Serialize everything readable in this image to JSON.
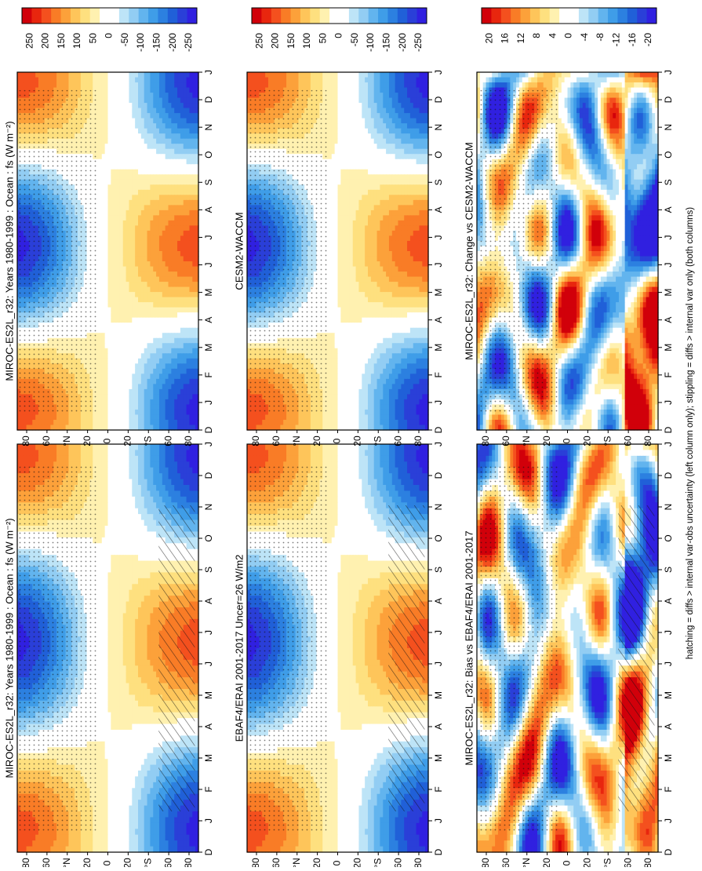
{
  "figure": {
    "footer_note": "hatching = diffs > internal var-obs uncertainty (left column only); stippling = diffs > internal var only (both columns)"
  },
  "colors": {
    "large_scale": [
      "#d1000a",
      "#e8260e",
      "#f4501e",
      "#f97c26",
      "#fca13a",
      "#fec55a",
      "#fee07f",
      "#fff1b0",
      "#ffffff",
      "#ffffff",
      "#bde4f7",
      "#92cdf3",
      "#62b4ee",
      "#3f9de8",
      "#2c80e0",
      "#2060d8",
      "#2a3fd8",
      "#3020e0"
    ],
    "diff_scale": [
      "#d1000a",
      "#e8260e",
      "#f4501e",
      "#f97c26",
      "#fca13a",
      "#fec55a",
      "#fee07f",
      "#fff1b0",
      "#ffffff",
      "#ffffff",
      "#bde4f7",
      "#92cdf3",
      "#62b4ee",
      "#3f9de8",
      "#2c80e0",
      "#2060d8",
      "#2a3fd8",
      "#3020e0"
    ]
  },
  "chart_data": [
    {
      "id": "row1-left",
      "type": "heatmap",
      "title": "MIROC-ES2L_r32: Years 1980-1999 : Ocean : fs (W m⁻²)",
      "x_ticks": [
        "D",
        "J",
        "F",
        "M",
        "A",
        "M",
        "J",
        "J",
        "A",
        "S",
        "O",
        "N",
        "D",
        "J"
      ],
      "y_ticks": [
        "80",
        "60",
        "°N",
        "20",
        "0",
        "20",
        "°S",
        "60",
        "80"
      ],
      "colorbar_ticks": [
        "250",
        "200",
        "150",
        "100",
        "50",
        "0",
        "-50",
        "-100",
        "-150",
        "-200",
        "-250"
      ],
      "range": [
        -275,
        275
      ],
      "field": "flux",
      "hatching": true,
      "stippling": true
    },
    {
      "id": "row1-right",
      "type": "heatmap",
      "title": "MIROC-ES2L_r32: Years 1980-1999 : Ocean : fs (W m⁻²)",
      "x_ticks": [
        "D",
        "J",
        "F",
        "M",
        "A",
        "M",
        "J",
        "J",
        "A",
        "S",
        "O",
        "N",
        "D",
        "J"
      ],
      "y_ticks": [
        "80",
        "60",
        "°N",
        "20",
        "0",
        "20",
        "°S",
        "60",
        "80"
      ],
      "colorbar_ticks": [
        "250",
        "200",
        "150",
        "100",
        "50",
        "0",
        "-50",
        "-100",
        "-150",
        "-200",
        "-250"
      ],
      "range": [
        -275,
        275
      ],
      "field": "flux",
      "hatching": false,
      "stippling": true
    },
    {
      "id": "row2-left",
      "type": "heatmap",
      "title": "EBAF4/ERAI 2001-2017 Uncer=26 W/m2",
      "x_ticks": [
        "D",
        "J",
        "F",
        "M",
        "A",
        "M",
        "J",
        "J",
        "A",
        "S",
        "O",
        "N",
        "D",
        "J"
      ],
      "y_ticks": [
        "80",
        "60",
        "°N",
        "20",
        "0",
        "20",
        "°S",
        "60",
        "80"
      ],
      "colorbar_ticks": [
        "250",
        "200",
        "150",
        "100",
        "50",
        "0",
        "-50",
        "-100",
        "-150",
        "-200",
        "-250"
      ],
      "range": [
        -275,
        275
      ],
      "field": "flux",
      "hatching": true,
      "stippling": true
    },
    {
      "id": "row2-right",
      "type": "heatmap",
      "title": "CESM2-WACCM",
      "x_ticks": [
        "D",
        "J",
        "F",
        "M",
        "A",
        "M",
        "J",
        "J",
        "A",
        "S",
        "O",
        "N",
        "D",
        "J"
      ],
      "y_ticks": [
        "80",
        "60",
        "°N",
        "20",
        "0",
        "20",
        "°S",
        "60",
        "80"
      ],
      "colorbar_ticks": [
        "250",
        "200",
        "150",
        "100",
        "50",
        "0",
        "-50",
        "-100",
        "-150",
        "-200",
        "-250"
      ],
      "range": [
        -275,
        275
      ],
      "field": "flux",
      "hatching": false,
      "stippling": true
    },
    {
      "id": "row3-left",
      "type": "heatmap",
      "title": "MIROC-ES2L_r32: Bias vs EBAF4/ERAI 2001-2017",
      "x_ticks": [
        "D",
        "J",
        "F",
        "M",
        "A",
        "M",
        "J",
        "J",
        "A",
        "S",
        "O",
        "N",
        "D",
        "J"
      ],
      "y_ticks": [
        "80",
        "60",
        "°N",
        "20",
        "0",
        "20",
        "°S",
        "60",
        "80"
      ],
      "colorbar_ticks": [
        "20",
        "16",
        "12",
        "8",
        "4",
        "0",
        "-4",
        "-8",
        "-12",
        "-16",
        "-20"
      ],
      "range": [
        -22,
        22
      ],
      "field": "diff",
      "hatching": true,
      "stippling": true
    },
    {
      "id": "row3-right",
      "type": "heatmap",
      "title": "MIROC-ES2L_r32: Change vs CESM2-WACCM",
      "x_ticks": [
        "D",
        "J",
        "F",
        "M",
        "A",
        "M",
        "J",
        "J",
        "A",
        "S",
        "O",
        "N",
        "D",
        "J"
      ],
      "y_ticks": [
        "80",
        "60",
        "°N",
        "20",
        "0",
        "20",
        "°S",
        "60",
        "80"
      ],
      "colorbar_ticks": [
        "20",
        "16",
        "12",
        "8",
        "4",
        "0",
        "-4",
        "-8",
        "-12",
        "-16",
        "-20"
      ],
      "range": [
        -22,
        22
      ],
      "field": "diff",
      "hatching": false,
      "stippling": true
    }
  ]
}
